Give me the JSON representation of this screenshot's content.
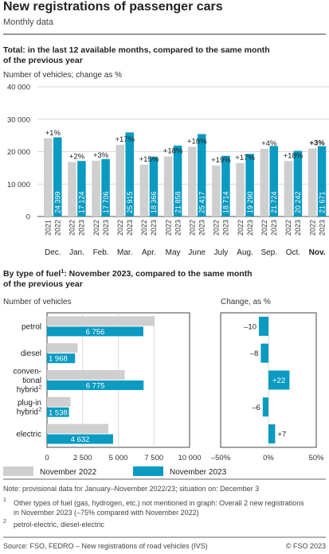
{
  "header": {
    "title": "New registrations of passenger cars",
    "subtitle": "Monthly data"
  },
  "colors": {
    "year_2022": "#cfcfcf",
    "year_2023": "#0a9ac2",
    "rule": "#333333",
    "grid": "#cccccc"
  },
  "chart_data": [
    {
      "type": "bar",
      "title": "Total: in the last 12 available months, compared to the same month of the previous year",
      "ylabel": "Number of vehicles; change as %",
      "ylim": [
        0,
        40000
      ],
      "yticks": [
        "0",
        "10 000",
        "20 000",
        "30 000",
        "40 000"
      ],
      "categories": [
        "Dec.",
        "Jan.",
        "Feb.",
        "Mar.",
        "Apr.",
        "May",
        "June",
        "July",
        "Aug.",
        "Sep.",
        "Oct.",
        "Nov."
      ],
      "highlight_category": "Nov.",
      "year_labels": [
        [
          "2021",
          "2022"
        ],
        [
          "2022",
          "2023"
        ],
        [
          "2022",
          "2023"
        ],
        [
          "2022",
          "2023"
        ],
        [
          "2022",
          "2023"
        ],
        [
          "2022",
          "2023"
        ],
        [
          "2022",
          "2023"
        ],
        [
          "2022",
          "2023"
        ],
        [
          "2022",
          "2023"
        ],
        [
          "2022",
          "2023"
        ],
        [
          "2022",
          "2023"
        ],
        [
          "2022",
          "2023"
        ]
      ],
      "series": [
        {
          "name": "previous year",
          "values": [
            24100,
            16800,
            17200,
            22100,
            16000,
            18500,
            21500,
            15700,
            16500,
            20900,
            17100,
            21000
          ]
        },
        {
          "name": "current year",
          "values": [
            24399,
            17124,
            17706,
            25915,
            18366,
            21858,
            25417,
            18714,
            19290,
            21724,
            20242,
            21671
          ]
        }
      ],
      "value_labels": [
        "24 399",
        "17 124",
        "17 706",
        "25 915",
        "18 366",
        "21 858",
        "25 417",
        "18 714",
        "19 290",
        "21 724",
        "20 242",
        "21 671"
      ],
      "change_labels": [
        "+1%",
        "+2%",
        "+3%",
        "+17%",
        "+15%",
        "+18%",
        "+18%",
        "+19%",
        "+17%",
        "+4%",
        "+18%",
        "+3%"
      ]
    },
    {
      "type": "bar",
      "orientation": "horizontal",
      "title_main": "By type of fuel",
      "title_sup": "1",
      "title_rest": ": November 2023, compared to the same month of the previous year",
      "ylabel": "Number of vehicles",
      "xlim": [
        0,
        10000
      ],
      "xticks": [
        "0",
        "2 500",
        "5 000",
        "7 500",
        "10 000"
      ],
      "categories": [
        {
          "lines": [
            "petrol"
          ],
          "sup": ""
        },
        {
          "lines": [
            "diesel"
          ],
          "sup": ""
        },
        {
          "lines": [
            "conven-",
            "tional",
            "hybrid"
          ],
          "sup": "2"
        },
        {
          "lines": [
            "plug-in",
            "hybrid"
          ],
          "sup": "2"
        },
        {
          "lines": [
            "electric"
          ],
          "sup": ""
        }
      ],
      "series": [
        {
          "name": "November 2022",
          "values": [
            7550,
            2150,
            5450,
            1650,
            4300
          ]
        },
        {
          "name": "November 2023",
          "values": [
            6756,
            1968,
            6775,
            1538,
            4632
          ]
        }
      ],
      "value_labels": [
        "6 756",
        "1 968",
        "6 775",
        "1 538",
        "4 632"
      ]
    },
    {
      "type": "bar",
      "orientation": "horizontal",
      "title": "Change, as %",
      "xlim": [
        -50,
        50
      ],
      "xticks": [
        "–50%",
        "0%",
        "50%"
      ],
      "values": [
        -10,
        -8,
        22,
        -6,
        7
      ],
      "value_labels": [
        "–10",
        "–8",
        "+22",
        "–6",
        "+7"
      ]
    }
  ],
  "legend": {
    "items": [
      "November 2022",
      "November 2023"
    ]
  },
  "notes": {
    "note": "Note: provisional data for January–November 2022/23; situation on: December 3",
    "fn1_mark": "1",
    "fn1_line1": "Other types of fuel (gas, hydrogen, etc.) not mentioned in graph: Overall 2 new registrations",
    "fn1_line2": "in November 2023 (–75% compared with November 2022)",
    "fn2_mark": "2",
    "fn2_text": "petrol-electric, diesel-electric"
  },
  "footer": {
    "source": "Source: FSO, FEDRO – New registrations of road vehicles (IVS)",
    "copyright": "© FSO 2023"
  }
}
